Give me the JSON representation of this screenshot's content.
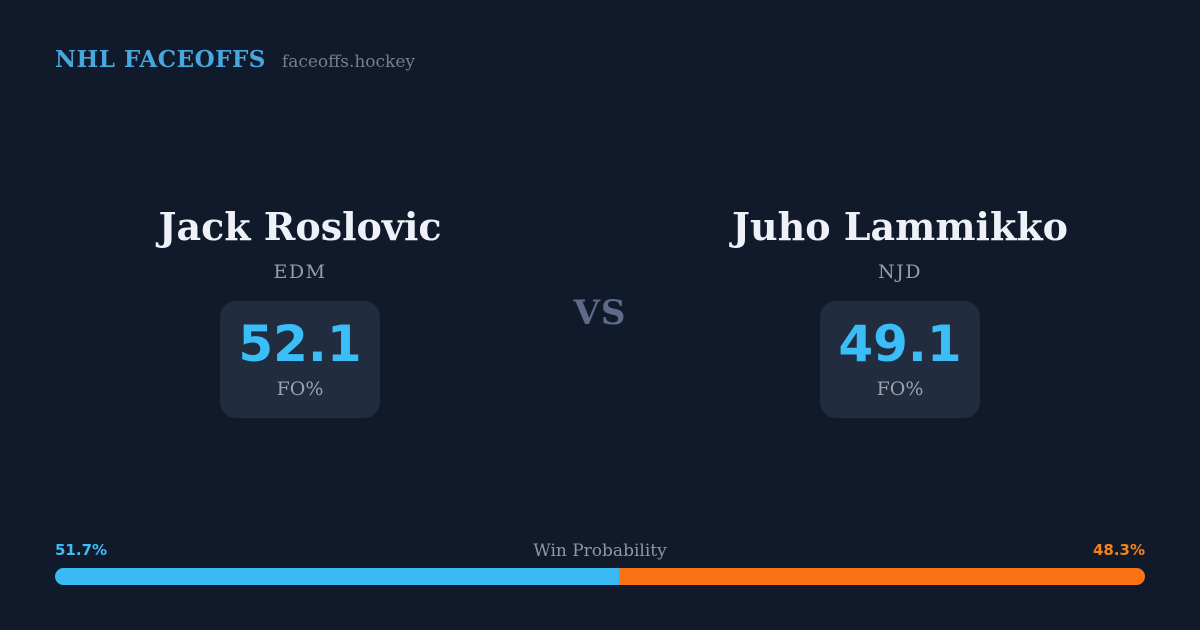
{
  "header": {
    "title": "NHL FACEOFFS",
    "site": "faceoffs.hockey"
  },
  "matchup": {
    "vs_label": "VS",
    "players": [
      {
        "name": "Jack Roslovic",
        "team": "EDM",
        "stat_value": "52.1",
        "stat_label": "FO%"
      },
      {
        "name": "Juho Lammikko",
        "team": "NJD",
        "stat_value": "49.1",
        "stat_label": "FO%"
      }
    ]
  },
  "win_probability": {
    "label": "Win Probability",
    "left_pct": "51.7%",
    "right_pct": "48.3%",
    "left_value": 51.7,
    "right_value": 48.3
  },
  "colors": {
    "background": "#111a2b",
    "panel": "#212c3e",
    "brand_blue": "#48a7de",
    "accent_blue": "#3bbdf8",
    "accent_orange": "#f97316",
    "name_white": "#eef2f8",
    "muted_gray": "#939db0"
  },
  "chart_data": {
    "type": "bar",
    "subtype": "horizontal-stacked-probability",
    "title": "Win Probability",
    "categories": [
      "Win Probability"
    ],
    "series": [
      {
        "name": "Jack Roslovic (EDM)",
        "values": [
          51.7
        ],
        "color": "#3abaf5"
      },
      {
        "name": "Juho Lammikko (NJD)",
        "values": [
          48.3
        ],
        "color": "#f97316"
      }
    ],
    "xlim": [
      0,
      100
    ],
    "grid": false,
    "legend_position": "none",
    "annotations": [
      "51.7%",
      "48.3%"
    ],
    "related_stats": {
      "faceoff_pct": [
        {
          "player": "Jack Roslovic",
          "team": "EDM",
          "fo_pct": 52.1
        },
        {
          "player": "Juho Lammikko",
          "team": "NJD",
          "fo_pct": 49.1
        }
      ]
    }
  }
}
